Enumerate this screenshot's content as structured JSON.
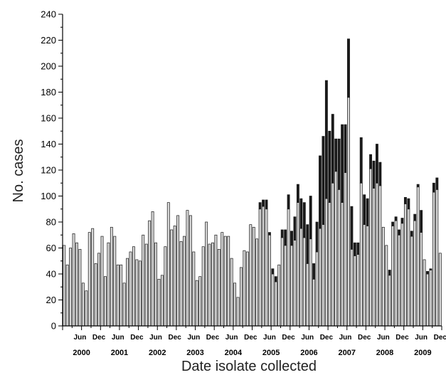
{
  "chart_data": {
    "type": "bar",
    "stacked": true,
    "title": "",
    "xlabel": "Date isolate collected",
    "ylabel": "No. cases",
    "ylim": [
      0,
      240
    ],
    "yticks": [
      0,
      20,
      40,
      60,
      80,
      100,
      120,
      140,
      160,
      180,
      200,
      220,
      240
    ],
    "x_start": "2000-01",
    "x_end": "2009-12",
    "month_tick_labels": [
      "Jun",
      "Dec"
    ],
    "year_labels": [
      "2000",
      "2001",
      "2002",
      "2003",
      "2004",
      "2005",
      "2006",
      "2007",
      "2008",
      "2009"
    ],
    "colors": {
      "bar_fill": "#d8d8d8",
      "bar_stroke": "#1a1a1a",
      "dark_segment": "#1a1a1a",
      "axis": "#000000"
    },
    "series": [
      {
        "name": "",
        "color": "#d8d8d8",
        "values": [
          62,
          47,
          60,
          71,
          64,
          59,
          33,
          27,
          72,
          75,
          48,
          56,
          69,
          38,
          64,
          76,
          69,
          47,
          47,
          33,
          52,
          57,
          61,
          51,
          50,
          70,
          63,
          81,
          88,
          64,
          36,
          39,
          61,
          95,
          74,
          77,
          85,
          65,
          69,
          89,
          85,
          57,
          35,
          38,
          61,
          80,
          63,
          64,
          70,
          59,
          72,
          69,
          69,
          52,
          33,
          22,
          45,
          58,
          57,
          78,
          76,
          67,
          90,
          92,
          90,
          70,
          40,
          34,
          47,
          68,
          62,
          90,
          62,
          66,
          95,
          75,
          68,
          48,
          67,
          36,
          57,
          75,
          78,
          98,
          95,
          110,
          119,
          105,
          95,
          118,
          176,
          59,
          54,
          55,
          110,
          78,
          77,
          121,
          106,
          110,
          108,
          76,
          62,
          39,
          77,
          81,
          70,
          79,
          94,
          90,
          69,
          81,
          107,
          72,
          51,
          40,
          43,
          103,
          105,
          56
        ]
      },
      {
        "name": "",
        "color": "#1a1a1a",
        "values": [
          0,
          0,
          0,
          0,
          0,
          0,
          0,
          0,
          0,
          0,
          0,
          0,
          0,
          0,
          0,
          0,
          0,
          0,
          0,
          0,
          0,
          0,
          0,
          0,
          0,
          0,
          0,
          0,
          0,
          0,
          0,
          0,
          0,
          0,
          0,
          0,
          0,
          0,
          0,
          0,
          0,
          0,
          0,
          0,
          0,
          0,
          0,
          0,
          0,
          0,
          0,
          0,
          0,
          0,
          0,
          0,
          0,
          0,
          0,
          0,
          0,
          0,
          5,
          5,
          7,
          2,
          4,
          4,
          0,
          6,
          12,
          11,
          11,
          18,
          14,
          23,
          27,
          30,
          33,
          12,
          23,
          56,
          68,
          91,
          55,
          53,
          25,
          39,
          60,
          37,
          45,
          33,
          10,
          9,
          35,
          23,
          21,
          11,
          21,
          30,
          18,
          0,
          0,
          4,
          3,
          3,
          4,
          4,
          5,
          8,
          4,
          5,
          2,
          17,
          0,
          2,
          1,
          7,
          9,
          0
        ]
      }
    ]
  }
}
